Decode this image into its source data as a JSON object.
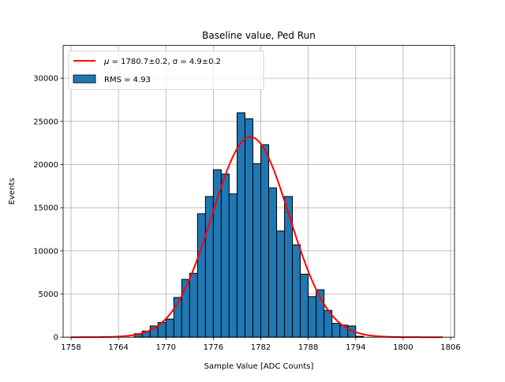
{
  "chart_data": {
    "type": "bar",
    "title": "Baseline value, Ped Run",
    "xlabel": "Sample Value [ADC Counts]",
    "ylabel": "Events",
    "xlim": [
      1757,
      1806.5
    ],
    "ylim": [
      0,
      33800
    ],
    "grid": true,
    "legend_position": "top-left",
    "colors": {
      "bars": "#1f77b4",
      "bar_edge": "#000000",
      "fit": "#ff0000"
    },
    "x_ticks": [
      1758,
      1764,
      1770,
      1776,
      1782,
      1788,
      1794,
      1800,
      1806
    ],
    "x_tick_labels": [
      "1758",
      "1764",
      "1770",
      "1776",
      "1782",
      "1788",
      "1794",
      "1800",
      "1806"
    ],
    "y_ticks": [
      0,
      5000,
      10000,
      15000,
      20000,
      25000,
      30000
    ],
    "y_tick_labels": [
      "0",
      "5000",
      "10000",
      "15000",
      "20000",
      "25000",
      "30000"
    ],
    "legend": [
      {
        "label_prefix": "μ",
        "label_rest": " = 1780.7±0.2, σ = 4.9±0.2",
        "kind": "line"
      },
      {
        "label": "RMS = 4.93",
        "kind": "bar"
      }
    ],
    "histogram": {
      "bin_edges": [
        1766,
        1767,
        1768,
        1769,
        1770,
        1771,
        1772,
        1773,
        1774,
        1775,
        1776,
        1777,
        1778,
        1779,
        1780,
        1781,
        1782,
        1783,
        1784,
        1785,
        1786,
        1787,
        1788,
        1789,
        1790,
        1791,
        1792,
        1793,
        1794,
        1795
      ],
      "counts": [
        400,
        700,
        1300,
        1700,
        2100,
        4600,
        6700,
        7400,
        14300,
        16300,
        19400,
        18900,
        16600,
        26000,
        25300,
        20100,
        22300,
        17300,
        12300,
        16300,
        10700,
        7300,
        4700,
        5500,
        3100,
        1600,
        1400,
        1300,
        100
      ]
    },
    "fit": {
      "mu": 1780.7,
      "sigma": 4.9,
      "amplitude": 23200,
      "x_range": [
        1758,
        1805
      ]
    }
  }
}
